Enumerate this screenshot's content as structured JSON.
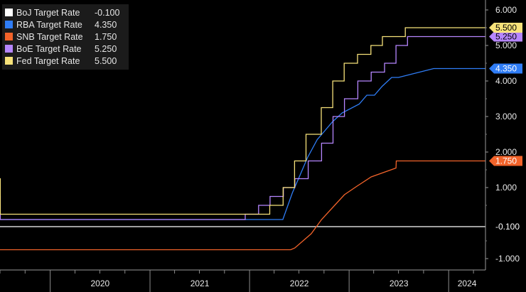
{
  "chart_data": {
    "type": "line",
    "title": "",
    "xlabel": "",
    "ylabel": "",
    "ylim": [
      -1,
      6
    ],
    "yticks": [
      "6.000",
      "5.000",
      "4.000",
      "3.000",
      "2.000",
      "1.000",
      "-1.000"
    ],
    "xlim": [
      "2019-07-01",
      "2024-05-15"
    ],
    "xticks": [
      "2020",
      "2021",
      "2022",
      "2023",
      "2024"
    ],
    "grid": false,
    "legend_position": "top-left",
    "series": [
      {
        "name": "BoJ Target Rate",
        "value_label": "-0.100",
        "last_value": -0.1,
        "color": "#ffffff",
        "points": [
          [
            "2019-07-01",
            -0.1
          ],
          [
            "2024-05-15",
            -0.1
          ]
        ]
      },
      {
        "name": "RBA Target Rate",
        "value_label": "4.350",
        "last_value": 4.35,
        "color": "#2f7df6",
        "points": [
          [
            "2019-07-01",
            1.0
          ],
          [
            "2019-07-02",
            0.1
          ],
          [
            "2020-03-01",
            0.1
          ],
          [
            "2020-03-20",
            0.1
          ],
          [
            "2020-11-03",
            0.1
          ],
          [
            "2020-11-04",
            0.1
          ],
          [
            "2022-05-03",
            0.1
          ],
          [
            "2022-06-07",
            0.85
          ],
          [
            "2022-07-05",
            1.35
          ],
          [
            "2022-08-02",
            1.85
          ],
          [
            "2022-09-06",
            2.35
          ],
          [
            "2022-10-04",
            2.6
          ],
          [
            "2022-11-01",
            2.85
          ],
          [
            "2022-12-06",
            3.1
          ],
          [
            "2023-02-07",
            3.35
          ],
          [
            "2023-03-07",
            3.6
          ],
          [
            "2023-04-04",
            3.6
          ],
          [
            "2023-05-02",
            3.85
          ],
          [
            "2023-06-06",
            4.1
          ],
          [
            "2023-07-01",
            4.1
          ],
          [
            "2023-11-07",
            4.35
          ],
          [
            "2024-05-15",
            4.35
          ]
        ]
      },
      {
        "name": "SNB Target Rate",
        "value_label": "1.750",
        "last_value": 1.75,
        "color": "#f2632a",
        "points": [
          [
            "2019-07-01",
            -0.75
          ],
          [
            "2022-06-01",
            -0.75
          ],
          [
            "2022-06-16",
            -0.7
          ],
          [
            "2022-08-15",
            -0.3
          ],
          [
            "2022-09-22",
            0.1
          ],
          [
            "2022-11-15",
            0.55
          ],
          [
            "2022-12-15",
            0.8
          ],
          [
            "2023-02-01",
            1.05
          ],
          [
            "2023-03-23",
            1.3
          ],
          [
            "2023-06-22",
            1.55
          ],
          [
            "2023-06-23",
            1.75
          ],
          [
            "2024-05-15",
            1.75
          ]
        ]
      },
      {
        "name": "BoE Target Rate",
        "value_label": "5.250",
        "last_value": 5.25,
        "color": "#b686ff",
        "points": [
          [
            "2019-07-01",
            0.75
          ],
          [
            "2019-07-02",
            0.1
          ],
          [
            "2021-12-16",
            0.1
          ],
          [
            "2021-12-16",
            0.25
          ],
          [
            "2022-02-03",
            0.5
          ],
          [
            "2022-03-17",
            0.75
          ],
          [
            "2022-05-05",
            1.0
          ],
          [
            "2022-06-16",
            1.25
          ],
          [
            "2022-08-04",
            1.75
          ],
          [
            "2022-09-22",
            2.25
          ],
          [
            "2022-11-03",
            3.0
          ],
          [
            "2022-12-15",
            3.5
          ],
          [
            "2023-02-02",
            4.0
          ],
          [
            "2023-03-23",
            4.25
          ],
          [
            "2023-05-11",
            4.5
          ],
          [
            "2023-06-22",
            5.0
          ],
          [
            "2023-08-03",
            5.25
          ],
          [
            "2024-05-15",
            5.25
          ]
        ]
      },
      {
        "name": "Fed Target Rate",
        "value_label": "5.500",
        "last_value": 5.5,
        "color": "#f7e27a",
        "points": [
          [
            "2019-07-01",
            1.25
          ],
          [
            "2019-07-02",
            0.25
          ],
          [
            "2022-03-16",
            0.25
          ],
          [
            "2022-03-16",
            0.5
          ],
          [
            "2022-05-04",
            1.0
          ],
          [
            "2022-06-15",
            1.75
          ],
          [
            "2022-07-27",
            2.5
          ],
          [
            "2022-09-21",
            3.25
          ],
          [
            "2022-11-02",
            4.0
          ],
          [
            "2022-12-14",
            4.5
          ],
          [
            "2023-02-01",
            4.75
          ],
          [
            "2023-03-22",
            5.0
          ],
          [
            "2023-05-03",
            5.25
          ],
          [
            "2023-07-26",
            5.5
          ],
          [
            "2024-05-15",
            5.5
          ]
        ]
      }
    ]
  }
}
